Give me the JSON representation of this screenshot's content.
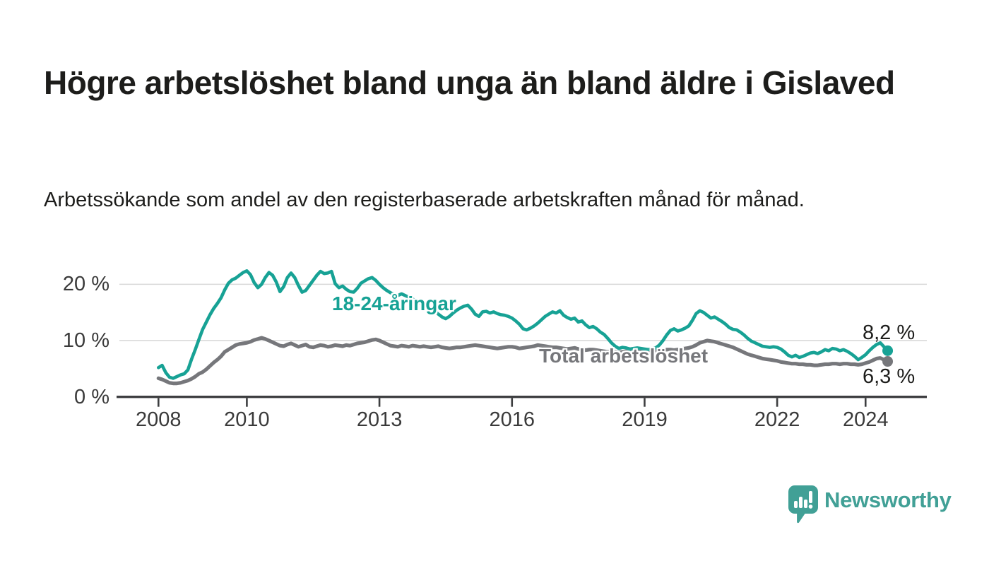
{
  "title": "Högre arbetslöshet bland unga än bland äldre i Gislaved",
  "subtitle": "Arbetssökande som andel av den registerbaserade arbetskraften månad för månad.",
  "branding": {
    "name": "Newsworthy",
    "color": "#41a096",
    "icon": "speech-bubble-bar-chart-icon"
  },
  "colors": {
    "youth_line": "#17a295",
    "total_line": "#76777b",
    "grid": "#d9d9d9",
    "axis": "#3d3e40",
    "text": "#1d1d1b",
    "tick_text": "#3a3a3a"
  },
  "chart_data": {
    "type": "line",
    "title": "Högre arbetslöshet bland unga än bland äldre i Gislaved",
    "subtitle": "Arbetssökande som andel av den registerbaserade arbetskraften månad för månad.",
    "unit": "%",
    "frequency": "monthly",
    "x_start_year": 2008,
    "x_start_month": 1,
    "x_end_year": 2024,
    "x_end_month": 7,
    "ylim": [
      0,
      23.5
    ],
    "grid": "horizontal",
    "y_grid_values": [
      10,
      20
    ],
    "y_ticks": [
      {
        "value": 20,
        "label": "20 %"
      },
      {
        "value": 10,
        "label": "10 %"
      },
      {
        "value": 0,
        "label": "0 %"
      }
    ],
    "x_ticks": [
      {
        "value": 2008,
        "label": "2008"
      },
      {
        "value": 2010,
        "label": "2010"
      },
      {
        "value": 2013,
        "label": "2013"
      },
      {
        "value": 2016,
        "label": "2016"
      },
      {
        "value": 2019,
        "label": "2019"
      },
      {
        "value": 2022,
        "label": "2022"
      },
      {
        "value": 2024,
        "label": "2024"
      }
    ],
    "series": [
      {
        "name": "18-24-åringar",
        "color": "#17a295",
        "end_value": 8.2,
        "end_label": "8,2 %",
        "values": [
          5.2,
          5.6,
          4.3,
          3.5,
          3.3,
          3.6,
          3.9,
          4.1,
          4.8,
          6.7,
          8.4,
          10.2,
          12.0,
          13.3,
          14.6,
          15.7,
          16.6,
          17.6,
          19.0,
          20.2,
          20.8,
          21.1,
          21.6,
          22.1,
          22.4,
          21.7,
          20.3,
          19.4,
          20.0,
          21.2,
          22.1,
          21.6,
          20.4,
          18.7,
          19.6,
          21.2,
          22.0,
          21.2,
          19.8,
          18.6,
          18.9,
          19.8,
          20.7,
          21.6,
          22.3,
          21.9,
          22.0,
          22.3,
          20.1,
          19.4,
          19.7,
          19.1,
          18.7,
          18.6,
          19.3,
          20.2,
          20.6,
          21.0,
          21.2,
          20.7,
          20.0,
          19.4,
          18.9,
          18.5,
          18.2,
          18.0,
          18.3,
          18.0,
          17.7,
          17.4,
          17.0,
          16.7,
          16.4,
          16.0,
          15.6,
          15.2,
          14.7,
          14.2,
          13.9,
          14.3,
          14.9,
          15.4,
          15.8,
          16.1,
          16.3,
          15.6,
          14.7,
          14.3,
          15.1,
          15.2,
          14.9,
          15.1,
          14.8,
          14.6,
          14.5,
          14.3,
          14.0,
          13.5,
          12.9,
          12.1,
          11.9,
          12.2,
          12.6,
          13.1,
          13.7,
          14.3,
          14.7,
          15.1,
          14.9,
          15.3,
          14.5,
          14.1,
          13.8,
          14.0,
          13.3,
          13.5,
          12.8,
          12.3,
          12.5,
          12.1,
          11.5,
          11.1,
          10.4,
          9.6,
          9.0,
          8.6,
          8.8,
          8.7,
          8.5,
          8.6,
          8.7,
          8.6,
          8.5,
          8.4,
          8.5,
          8.7,
          9.2,
          10.0,
          11.0,
          11.8,
          12.1,
          11.7,
          11.9,
          12.2,
          12.6,
          13.6,
          14.8,
          15.3,
          15.0,
          14.5,
          14.0,
          14.2,
          13.8,
          13.4,
          12.9,
          12.3,
          12.0,
          11.9,
          11.5,
          11.0,
          10.4,
          9.9,
          9.6,
          9.3,
          9.0,
          8.9,
          8.8,
          8.9,
          8.8,
          8.5,
          8.0,
          7.4,
          7.1,
          7.4,
          7.0,
          7.2,
          7.5,
          7.8,
          7.9,
          7.7,
          8.0,
          8.4,
          8.2,
          8.6,
          8.5,
          8.2,
          8.4,
          8.1,
          7.7,
          7.2,
          6.6,
          7.0,
          7.5,
          8.2,
          8.8,
          9.3,
          9.6,
          8.9,
          8.2
        ]
      },
      {
        "name": "Total arbetslöshet",
        "color": "#76777b",
        "end_value": 6.3,
        "end_label": "6,3 %",
        "values": [
          3.3,
          3.1,
          2.8,
          2.5,
          2.4,
          2.4,
          2.5,
          2.7,
          2.9,
          3.2,
          3.6,
          4.1,
          4.4,
          4.9,
          5.5,
          6.1,
          6.6,
          7.2,
          8.0,
          8.4,
          8.8,
          9.2,
          9.4,
          9.5,
          9.6,
          9.8,
          10.1,
          10.3,
          10.5,
          10.3,
          10.0,
          9.7,
          9.4,
          9.1,
          9.0,
          9.3,
          9.5,
          9.2,
          8.9,
          9.1,
          9.3,
          8.9,
          8.8,
          9.0,
          9.2,
          9.1,
          8.9,
          9.0,
          9.2,
          9.1,
          9.0,
          9.2,
          9.1,
          9.3,
          9.5,
          9.6,
          9.7,
          9.9,
          10.1,
          10.2,
          10.0,
          9.7,
          9.4,
          9.1,
          9.0,
          8.9,
          9.1,
          9.0,
          8.9,
          9.1,
          9.0,
          8.9,
          9.0,
          8.9,
          8.8,
          8.9,
          9.0,
          8.8,
          8.7,
          8.6,
          8.7,
          8.8,
          8.8,
          8.9,
          9.0,
          9.1,
          9.2,
          9.1,
          9.0,
          8.9,
          8.8,
          8.7,
          8.6,
          8.7,
          8.8,
          8.9,
          8.9,
          8.8,
          8.6,
          8.7,
          8.8,
          8.9,
          9.0,
          9.2,
          9.1,
          9.0,
          8.9,
          8.8,
          8.8,
          8.7,
          8.6,
          8.5,
          8.6,
          8.7,
          8.5,
          8.4,
          8.3,
          8.4,
          8.4,
          8.3,
          8.2,
          8.1,
          8.0,
          8.1,
          8.0,
          7.9,
          8.0,
          8.1,
          8.0,
          8.1,
          8.2,
          8.2,
          8.1,
          8.0,
          8.0,
          8.1,
          8.2,
          8.3,
          8.4,
          8.4,
          8.3,
          8.4,
          8.5,
          8.6,
          8.7,
          8.9,
          9.2,
          9.6,
          9.8,
          10.0,
          9.9,
          9.8,
          9.6,
          9.4,
          9.2,
          9.0,
          8.8,
          8.5,
          8.2,
          7.9,
          7.6,
          7.4,
          7.2,
          7.0,
          6.8,
          6.7,
          6.6,
          6.5,
          6.4,
          6.2,
          6.1,
          6.0,
          5.9,
          5.9,
          5.8,
          5.8,
          5.7,
          5.7,
          5.6,
          5.6,
          5.7,
          5.8,
          5.8,
          5.9,
          5.9,
          5.8,
          5.9,
          5.9,
          5.8,
          5.8,
          5.7,
          5.8,
          6.0,
          6.2,
          6.5,
          6.8,
          6.9,
          6.6,
          6.3
        ]
      }
    ]
  }
}
